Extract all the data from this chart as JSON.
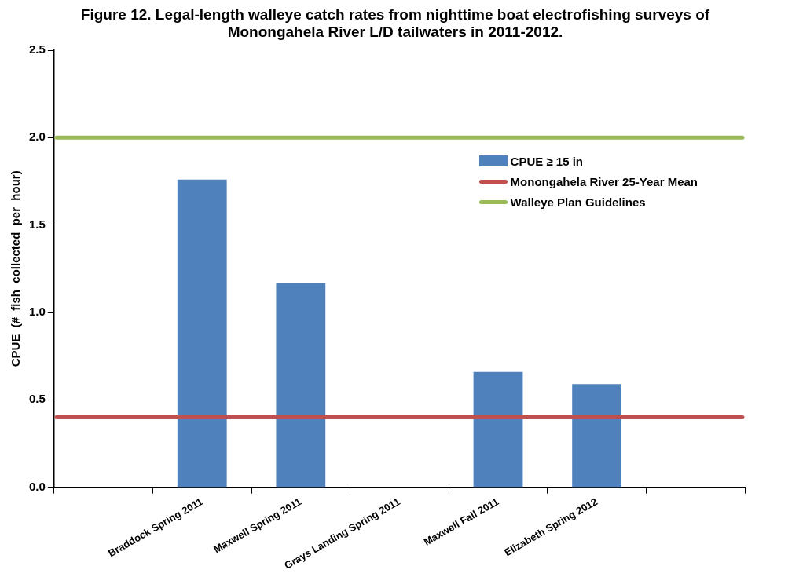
{
  "chart_data": {
    "type": "bar",
    "title": "Figure 12.  Legal-length walleye catch rates from nighttime boat electrofishing surveys of Monongahela River L/D tailwaters in 2011-2012.",
    "ylabel": "CPUE  (#  fish  collected  per  hour)",
    "categories": [
      null,
      "Braddock Spring 2011",
      "Maxwell Spring 2011",
      "Grays Landing Spring 2011",
      "Maxwell Fall 2011",
      "Elizabeth Spring 2012",
      null
    ],
    "series": [
      {
        "name": "CPUE ≥ 15 in",
        "color": "#4f81bd",
        "values": [
          null,
          1.76,
          1.17,
          0,
          0.66,
          0.59,
          null
        ]
      }
    ],
    "ref_lines": [
      {
        "axis": "y",
        "value": 0.4,
        "label": "Monongahela River 25-Year Mean",
        "color": "#c0504d"
      },
      {
        "axis": "y",
        "value": 2.0,
        "label": "Walleye Plan Guidelines",
        "color": "#9bbb59"
      }
    ],
    "ylim": [
      0,
      2.5
    ],
    "yticks": [
      {
        "value": 0,
        "label": "0.0"
      },
      0.5,
      {
        "value": 1,
        "label": "1.0"
      },
      1.5,
      {
        "value": 2,
        "label": "2.0"
      },
      2.5
    ],
    "grid": false,
    "legend": "top right"
  }
}
